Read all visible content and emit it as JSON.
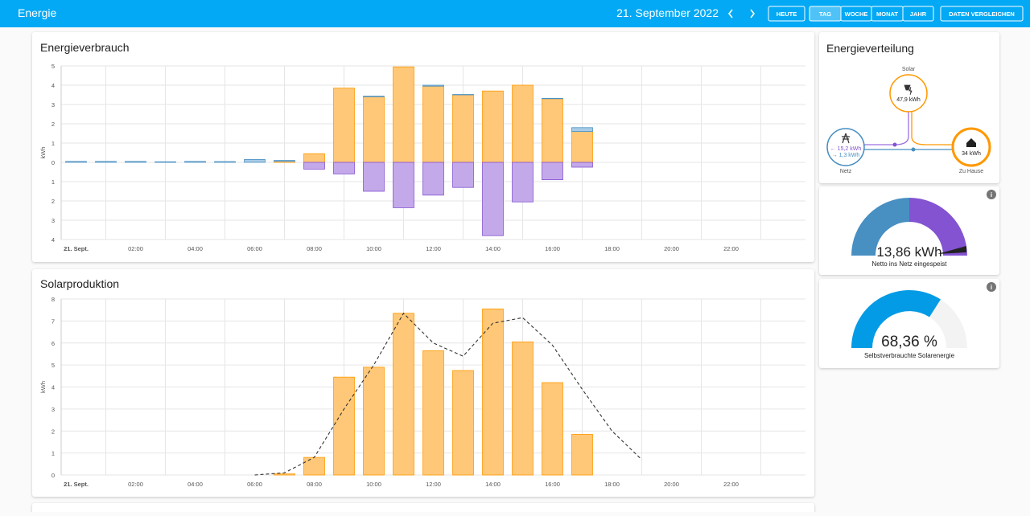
{
  "header": {
    "title": "Energie",
    "date": "21. September 2022",
    "buttons": [
      "HEUTE",
      "TAG",
      "WOCHE",
      "MONAT",
      "JAHR",
      "DATEN VERGLEICHEN"
    ]
  },
  "chart_data": [
    {
      "type": "bar",
      "title": "Energieverbrauch",
      "y_label": "kWh",
      "x": [
        0,
        1,
        2,
        3,
        4,
        5,
        6,
        7,
        8,
        9,
        10,
        11,
        12,
        13,
        14,
        15,
        16,
        17
      ],
      "xlim": [
        -0.5,
        24.5
      ],
      "xticks": [
        {
          "value": 0,
          "label": "21. Sept."
        },
        {
          "value": 2,
          "label": "02:00"
        },
        {
          "value": 4,
          "label": "04:00"
        },
        {
          "value": 6,
          "label": "06:00"
        },
        {
          "value": 8,
          "label": "08:00"
        },
        {
          "value": 10,
          "label": "10:00"
        },
        {
          "value": 12,
          "label": "12:00"
        },
        {
          "value": 14,
          "label": "14:00"
        },
        {
          "value": 16,
          "label": "16:00"
        },
        {
          "value": 18,
          "label": "18:00"
        },
        {
          "value": 20,
          "label": "20:00"
        },
        {
          "value": 22,
          "label": "22:00"
        }
      ],
      "ylim": [
        -4,
        5
      ],
      "yticks": [
        {
          "value": -4,
          "label": "4"
        },
        {
          "value": -3,
          "label": "3"
        },
        {
          "value": -2,
          "label": "2"
        },
        {
          "value": -1,
          "label": "1"
        },
        0,
        1,
        2,
        3,
        4,
        5
      ],
      "grid": true,
      "series": [
        {
          "color": "#ff9800",
          "values": [
            0,
            0,
            0,
            0,
            0,
            0,
            0,
            0.05,
            0.45,
            3.85,
            3.4,
            4.95,
            3.95,
            3.5,
            3.7,
            4.0,
            3.3,
            1.6
          ]
        },
        {
          "color": "#488fc2",
          "values": [
            0.05,
            0.05,
            0.05,
            0.03,
            0.05,
            0.04,
            0.15,
            0.05,
            0,
            0,
            0.03,
            0,
            0.05,
            0.02,
            0,
            0,
            0.02,
            0.2
          ]
        },
        {
          "color": "#8353d1",
          "values": [
            0,
            0,
            0,
            0,
            0,
            0,
            0,
            0,
            -0.35,
            -0.6,
            -1.5,
            -2.35,
            -1.7,
            -1.3,
            -3.8,
            -2.05,
            -0.9,
            -0.25
          ]
        }
      ]
    },
    {
      "type": "bar",
      "title": "Solarproduktion",
      "y_label": "kWh",
      "x": [
        0,
        1,
        2,
        3,
        4,
        5,
        6,
        7,
        8,
        9,
        10,
        11,
        12,
        13,
        14,
        15,
        16,
        17,
        18,
        19
      ],
      "xlim": [
        -0.5,
        24.5
      ],
      "xticks": [
        {
          "value": 0,
          "label": "21. Sept."
        },
        {
          "value": 2,
          "label": "02:00"
        },
        {
          "value": 4,
          "label": "04:00"
        },
        {
          "value": 6,
          "label": "06:00"
        },
        {
          "value": 8,
          "label": "08:00"
        },
        {
          "value": 10,
          "label": "10:00"
        },
        {
          "value": 12,
          "label": "12:00"
        },
        {
          "value": 14,
          "label": "14:00"
        },
        {
          "value": 16,
          "label": "16:00"
        },
        {
          "value": 18,
          "label": "18:00"
        },
        {
          "value": 20,
          "label": "20:00"
        },
        {
          "value": 22,
          "label": "22:00"
        }
      ],
      "ylim": [
        0,
        8
      ],
      "yticks": [
        0,
        1,
        2,
        3,
        4,
        5,
        6,
        7,
        8
      ],
      "grid": true,
      "series": [
        {
          "color": "#ff9800",
          "values": [
            0,
            0,
            0,
            0,
            0,
            0,
            0,
            0.05,
            0.8,
            4.45,
            4.9,
            7.35,
            5.65,
            4.75,
            7.55,
            6.05,
            4.2,
            1.85,
            0,
            0
          ]
        },
        {
          "type": "line",
          "color": "#333333",
          "dashed": true,
          "values": [
            null,
            null,
            null,
            null,
            null,
            null,
            0,
            0.1,
            0.8,
            3.0,
            5.0,
            7.35,
            6.0,
            5.4,
            6.9,
            7.15,
            5.9,
            3.9,
            2.0,
            0.7
          ]
        }
      ]
    }
  ],
  "distribution": {
    "title": "Energieverteilung",
    "solar": {
      "label": "Solar",
      "value": "47,9 kWh"
    },
    "grid": {
      "label": "Netz",
      "in": "← 15,2 kWh",
      "out": "→ 1,3 kWh"
    },
    "home": {
      "label": "Zu Hause",
      "value": "34 kWh"
    }
  },
  "gauges": [
    {
      "value": "13,86 kWh",
      "label": "Netto ins Netz eingespeist"
    },
    {
      "value": "68,36 %",
      "label": "Selbstverbrauchte Solarenergie"
    }
  ]
}
